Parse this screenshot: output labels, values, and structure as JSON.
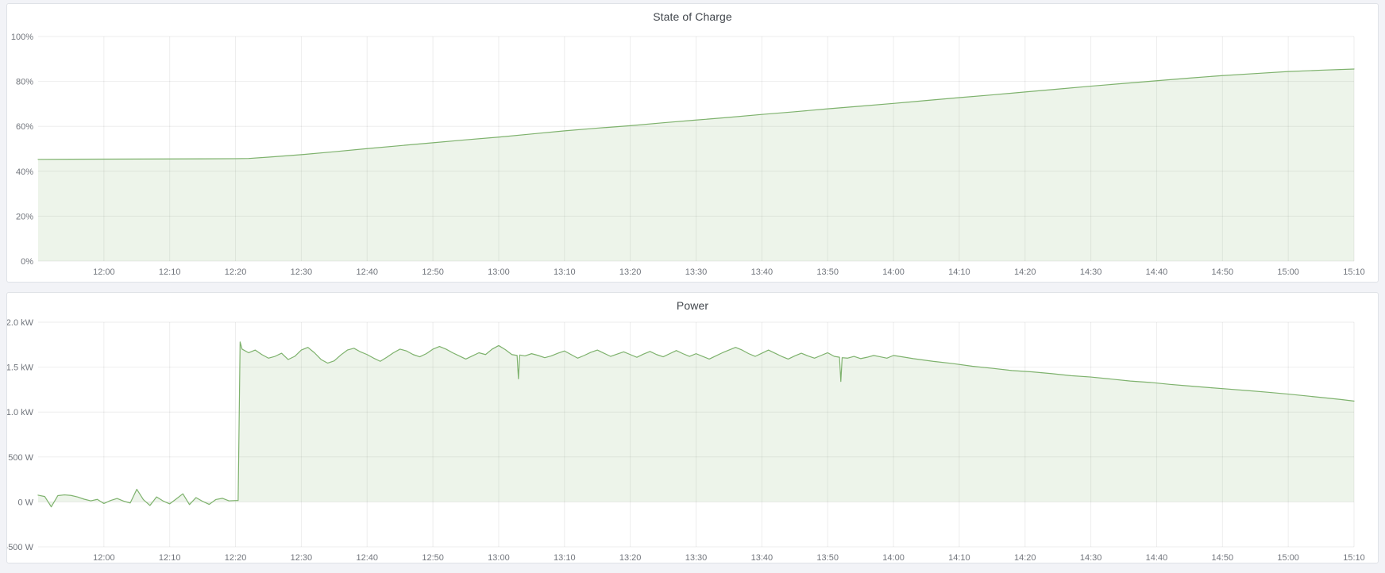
{
  "page": {
    "background": "#f2f3f7",
    "panel_background": "#ffffff",
    "panel_border": "#dfe2e7"
  },
  "colors": {
    "series_green": "#7eb26d",
    "series_fill": "rgba(126,178,109,0.14)",
    "grid": "rgba(0,0,0,0.07)",
    "tick_text": "#71757c",
    "title_text": "#41464c"
  },
  "panels": [
    {
      "title": "State of Charge"
    },
    {
      "title": "Power"
    }
  ],
  "chart_data": [
    {
      "type": "area",
      "title": "State of Charge",
      "x_unit": "time",
      "x_start": "11:50",
      "x_end": "15:10",
      "xlim_minutes": [
        0,
        200
      ],
      "ylim": [
        0,
        100
      ],
      "grid": true,
      "legend": "none",
      "fill_baseline": 0,
      "ytick_values": [
        0,
        20,
        40,
        60,
        80,
        100
      ],
      "ytick_labels": [
        "0%",
        "20%",
        "40%",
        "60%",
        "80%",
        "100%"
      ],
      "xtick_minutes": [
        10,
        20,
        30,
        40,
        50,
        60,
        70,
        80,
        90,
        100,
        110,
        120,
        130,
        140,
        150,
        160,
        170,
        180,
        190,
        200
      ],
      "xtick_labels": [
        "12:00",
        "12:10",
        "12:20",
        "12:30",
        "12:40",
        "12:50",
        "13:00",
        "13:10",
        "13:20",
        "13:30",
        "13:40",
        "13:50",
        "14:00",
        "14:10",
        "14:20",
        "14:30",
        "14:40",
        "14:50",
        "15:00",
        "15:10"
      ],
      "points": [
        [
          0,
          45.3
        ],
        [
          5,
          45.35
        ],
        [
          10,
          45.4
        ],
        [
          15,
          45.45
        ],
        [
          20,
          45.5
        ],
        [
          25,
          45.55
        ],
        [
          30,
          45.6
        ],
        [
          32,
          45.7
        ],
        [
          35,
          46.3
        ],
        [
          40,
          47.4
        ],
        [
          45,
          48.7
        ],
        [
          50,
          50.1
        ],
        [
          55,
          51.4
        ],
        [
          60,
          52.7
        ],
        [
          65,
          54.0
        ],
        [
          70,
          55.2
        ],
        [
          75,
          56.6
        ],
        [
          80,
          58.0
        ],
        [
          85,
          59.2
        ],
        [
          90,
          60.3
        ],
        [
          95,
          61.6
        ],
        [
          100,
          62.8
        ],
        [
          105,
          64.0
        ],
        [
          110,
          65.3
        ],
        [
          115,
          66.5
        ],
        [
          120,
          67.8
        ],
        [
          125,
          69.0
        ],
        [
          130,
          70.2
        ],
        [
          135,
          71.5
        ],
        [
          140,
          72.8
        ],
        [
          145,
          74.0
        ],
        [
          150,
          75.3
        ],
        [
          155,
          76.6
        ],
        [
          160,
          77.9
        ],
        [
          165,
          79.1
        ],
        [
          170,
          80.3
        ],
        [
          175,
          81.5
        ],
        [
          180,
          82.6
        ],
        [
          185,
          83.5
        ],
        [
          190,
          84.4
        ],
        [
          195,
          85.0
        ],
        [
          200,
          85.5
        ]
      ]
    },
    {
      "type": "area",
      "title": "Power",
      "x_unit": "time",
      "x_start": "11:50",
      "x_end": "15:10",
      "xlim_minutes": [
        0,
        200
      ],
      "ylim": [
        -500,
        2000
      ],
      "grid": true,
      "legend": "none",
      "fill_baseline": 0,
      "ytick_values": [
        -500,
        0,
        500,
        1000,
        1500,
        2000
      ],
      "ytick_labels": [
        "-500 W",
        "0 W",
        "500 W",
        "1.0 kW",
        "1.5 kW",
        "2.0 kW"
      ],
      "xtick_minutes": [
        10,
        20,
        30,
        40,
        50,
        60,
        70,
        80,
        90,
        100,
        110,
        120,
        130,
        140,
        150,
        160,
        170,
        180,
        190,
        200
      ],
      "xtick_labels": [
        "12:00",
        "12:10",
        "12:20",
        "12:30",
        "12:40",
        "12:50",
        "13:00",
        "13:10",
        "13:20",
        "13:30",
        "13:40",
        "13:50",
        "14:00",
        "14:10",
        "14:20",
        "14:30",
        "14:40",
        "14:50",
        "15:00",
        "15:10"
      ],
      "points": [
        [
          0,
          75
        ],
        [
          1,
          60
        ],
        [
          2,
          -55
        ],
        [
          3,
          70
        ],
        [
          4,
          78
        ],
        [
          5,
          72
        ],
        [
          6,
          55
        ],
        [
          7,
          30
        ],
        [
          8,
          12
        ],
        [
          9,
          28
        ],
        [
          10,
          -18
        ],
        [
          11,
          15
        ],
        [
          12,
          38
        ],
        [
          13,
          8
        ],
        [
          14,
          -12
        ],
        [
          15,
          140
        ],
        [
          16,
          25
        ],
        [
          17,
          -40
        ],
        [
          18,
          55
        ],
        [
          19,
          10
        ],
        [
          20,
          -22
        ],
        [
          21,
          33
        ],
        [
          22,
          90
        ],
        [
          23,
          -30
        ],
        [
          24,
          48
        ],
        [
          25,
          6
        ],
        [
          26,
          -28
        ],
        [
          27,
          26
        ],
        [
          28,
          40
        ],
        [
          29,
          12
        ],
        [
          30,
          15
        ],
        [
          30.4,
          15
        ],
        [
          30.7,
          1780
        ],
        [
          31,
          1700
        ],
        [
          32,
          1660
        ],
        [
          33,
          1690
        ],
        [
          34,
          1640
        ],
        [
          35,
          1600
        ],
        [
          36,
          1620
        ],
        [
          37,
          1655
        ],
        [
          38,
          1585
        ],
        [
          39,
          1620
        ],
        [
          40,
          1690
        ],
        [
          41,
          1720
        ],
        [
          42,
          1660
        ],
        [
          43,
          1585
        ],
        [
          44,
          1545
        ],
        [
          45,
          1570
        ],
        [
          46,
          1635
        ],
        [
          47,
          1690
        ],
        [
          48,
          1710
        ],
        [
          49,
          1670
        ],
        [
          50,
          1640
        ],
        [
          51,
          1600
        ],
        [
          52,
          1565
        ],
        [
          53,
          1610
        ],
        [
          54,
          1660
        ],
        [
          55,
          1700
        ],
        [
          56,
          1680
        ],
        [
          57,
          1640
        ],
        [
          58,
          1615
        ],
        [
          59,
          1650
        ],
        [
          60,
          1700
        ],
        [
          61,
          1730
        ],
        [
          62,
          1700
        ],
        [
          63,
          1660
        ],
        [
          64,
          1625
        ],
        [
          65,
          1590
        ],
        [
          66,
          1625
        ],
        [
          67,
          1660
        ],
        [
          68,
          1640
        ],
        [
          69,
          1700
        ],
        [
          70,
          1740
        ],
        [
          71,
          1695
        ],
        [
          72,
          1640
        ],
        [
          72.8,
          1630
        ],
        [
          73,
          1370
        ],
        [
          73.2,
          1635
        ],
        [
          74,
          1625
        ],
        [
          75,
          1650
        ],
        [
          76,
          1630
        ],
        [
          77,
          1605
        ],
        [
          78,
          1625
        ],
        [
          79,
          1655
        ],
        [
          80,
          1680
        ],
        [
          81,
          1640
        ],
        [
          82,
          1600
        ],
        [
          83,
          1630
        ],
        [
          84,
          1665
        ],
        [
          85,
          1690
        ],
        [
          86,
          1655
        ],
        [
          87,
          1620
        ],
        [
          88,
          1645
        ],
        [
          89,
          1670
        ],
        [
          90,
          1640
        ],
        [
          91,
          1610
        ],
        [
          92,
          1645
        ],
        [
          93,
          1675
        ],
        [
          94,
          1640
        ],
        [
          95,
          1615
        ],
        [
          96,
          1650
        ],
        [
          97,
          1685
        ],
        [
          98,
          1650
        ],
        [
          99,
          1620
        ],
        [
          100,
          1650
        ],
        [
          101,
          1620
        ],
        [
          102,
          1590
        ],
        [
          103,
          1625
        ],
        [
          104,
          1660
        ],
        [
          105,
          1690
        ],
        [
          106,
          1720
        ],
        [
          107,
          1690
        ],
        [
          108,
          1650
        ],
        [
          109,
          1620
        ],
        [
          110,
          1655
        ],
        [
          111,
          1690
        ],
        [
          112,
          1655
        ],
        [
          113,
          1620
        ],
        [
          114,
          1590
        ],
        [
          115,
          1625
        ],
        [
          116,
          1655
        ],
        [
          117,
          1625
        ],
        [
          118,
          1600
        ],
        [
          119,
          1630
        ],
        [
          120,
          1660
        ],
        [
          121,
          1620
        ],
        [
          121.8,
          1610
        ],
        [
          122,
          1340
        ],
        [
          122.2,
          1605
        ],
        [
          123,
          1600
        ],
        [
          124,
          1620
        ],
        [
          125,
          1595
        ],
        [
          126,
          1610
        ],
        [
          127,
          1630
        ],
        [
          128,
          1615
        ],
        [
          129,
          1600
        ],
        [
          130,
          1630
        ],
        [
          133,
          1595
        ],
        [
          136,
          1565
        ],
        [
          139,
          1540
        ],
        [
          142,
          1510
        ],
        [
          145,
          1487
        ],
        [
          148,
          1462
        ],
        [
          151,
          1448
        ],
        [
          154,
          1428
        ],
        [
          157,
          1405
        ],
        [
          160,
          1390
        ],
        [
          163,
          1368
        ],
        [
          166,
          1345
        ],
        [
          169,
          1330
        ],
        [
          172,
          1308
        ],
        [
          175,
          1290
        ],
        [
          178,
          1272
        ],
        [
          181,
          1255
        ],
        [
          184,
          1238
        ],
        [
          187,
          1220
        ],
        [
          190,
          1200
        ],
        [
          193,
          1178
        ],
        [
          196,
          1155
        ],
        [
          198,
          1140
        ],
        [
          200,
          1122
        ]
      ]
    }
  ]
}
